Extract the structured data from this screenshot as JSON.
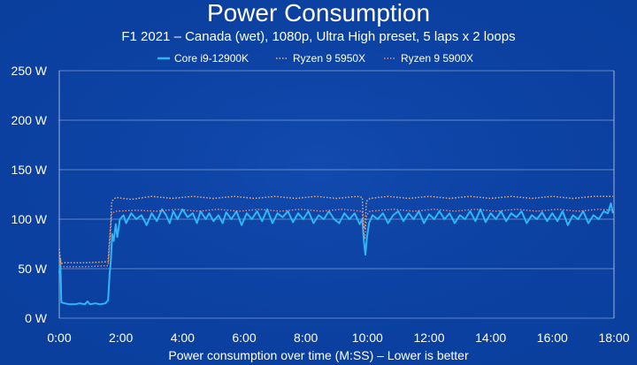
{
  "chart_data": {
    "type": "line",
    "title": "Power Consumption",
    "subtitle": "F1 2021 – Canada (wet), 1080p, Ultra High preset, 5 laps x 2 loops",
    "xlabel": "Power consumption over time (M:SS) – Lower is better",
    "ylabel": "",
    "x_unit": "seconds",
    "xlim": [
      0,
      1080
    ],
    "ylim": [
      0,
      250
    ],
    "x_ticks": [
      0,
      120,
      240,
      360,
      480,
      600,
      720,
      840,
      960,
      1080
    ],
    "x_tick_labels": [
      "0:00",
      "2:00",
      "4:00",
      "6:00",
      "8:00",
      "10:00",
      "12:00",
      "14:00",
      "16:00",
      "18:00"
    ],
    "y_ticks": [
      0,
      50,
      100,
      150,
      200,
      250
    ],
    "y_tick_labels": [
      "0 W",
      "50 W",
      "100 W",
      "150 W",
      "200 W",
      "250 W"
    ],
    "grid": true,
    "legend_position": "top-center",
    "series": [
      {
        "name": "Core i9-12900K",
        "style": "solid",
        "color": "#2db7f5",
        "points": [
          [
            0,
            45
          ],
          [
            2,
            60
          ],
          [
            4,
            16
          ],
          [
            10,
            15
          ],
          [
            20,
            14
          ],
          [
            30,
            14
          ],
          [
            40,
            15
          ],
          [
            50,
            14
          ],
          [
            55,
            17
          ],
          [
            60,
            14
          ],
          [
            70,
            15
          ],
          [
            80,
            14
          ],
          [
            90,
            15
          ],
          [
            95,
            18
          ],
          [
            98,
            45
          ],
          [
            100,
            55
          ],
          [
            103,
            85
          ],
          [
            106,
            78
          ],
          [
            110,
            95
          ],
          [
            113,
            82
          ],
          [
            118,
            100
          ],
          [
            125,
            104
          ],
          [
            130,
            96
          ],
          [
            140,
            106
          ],
          [
            150,
            100
          ],
          [
            160,
            104
          ],
          [
            170,
            94
          ],
          [
            180,
            106
          ],
          [
            190,
            98
          ],
          [
            200,
            110
          ],
          [
            208,
            104
          ],
          [
            215,
            96
          ],
          [
            222,
            108
          ],
          [
            230,
            100
          ],
          [
            240,
            110
          ],
          [
            250,
            102
          ],
          [
            260,
            106
          ],
          [
            268,
            96
          ],
          [
            275,
            108
          ],
          [
            285,
            100
          ],
          [
            292,
            106
          ],
          [
            300,
            98
          ],
          [
            310,
            104
          ],
          [
            318,
            96
          ],
          [
            325,
            107
          ],
          [
            335,
            100
          ],
          [
            345,
            108
          ],
          [
            355,
            94
          ],
          [
            365,
            106
          ],
          [
            375,
            100
          ],
          [
            385,
            108
          ],
          [
            395,
            98
          ],
          [
            405,
            110
          ],
          [
            415,
            96
          ],
          [
            425,
            106
          ],
          [
            435,
            102
          ],
          [
            445,
            108
          ],
          [
            455,
            97
          ],
          [
            465,
            106
          ],
          [
            475,
            100
          ],
          [
            485,
            108
          ],
          [
            495,
            96
          ],
          [
            505,
            104
          ],
          [
            515,
            100
          ],
          [
            525,
            108
          ],
          [
            535,
            100
          ],
          [
            545,
            96
          ],
          [
            555,
            106
          ],
          [
            565,
            100
          ],
          [
            575,
            106
          ],
          [
            585,
            95
          ],
          [
            590,
            100
          ],
          [
            593,
            78
          ],
          [
            596,
            64
          ],
          [
            599,
            82
          ],
          [
            603,
            96
          ],
          [
            610,
            104
          ],
          [
            620,
            100
          ],
          [
            630,
            106
          ],
          [
            640,
            96
          ],
          [
            650,
            104
          ],
          [
            660,
            108
          ],
          [
            670,
            98
          ],
          [
            680,
            106
          ],
          [
            690,
            100
          ],
          [
            700,
            108
          ],
          [
            710,
            96
          ],
          [
            720,
            105
          ],
          [
            730,
            100
          ],
          [
            740,
            108
          ],
          [
            750,
            100
          ],
          [
            760,
            106
          ],
          [
            770,
            96
          ],
          [
            780,
            104
          ],
          [
            790,
            100
          ],
          [
            800,
            108
          ],
          [
            810,
            98
          ],
          [
            820,
            110
          ],
          [
            830,
            97
          ],
          [
            840,
            106
          ],
          [
            850,
            100
          ],
          [
            860,
            108
          ],
          [
            870,
            98
          ],
          [
            880,
            106
          ],
          [
            890,
            102
          ],
          [
            900,
            108
          ],
          [
            910,
            96
          ],
          [
            920,
            104
          ],
          [
            930,
            100
          ],
          [
            940,
            107
          ],
          [
            950,
            98
          ],
          [
            960,
            106
          ],
          [
            970,
            98
          ],
          [
            980,
            108
          ],
          [
            990,
            94
          ],
          [
            1000,
            104
          ],
          [
            1010,
            100
          ],
          [
            1020,
            108
          ],
          [
            1030,
            96
          ],
          [
            1040,
            104
          ],
          [
            1050,
            100
          ],
          [
            1060,
            108
          ],
          [
            1068,
            106
          ],
          [
            1074,
            116
          ],
          [
            1078,
            106
          ]
        ]
      },
      {
        "name": "Ryzen 9 5950X",
        "style": "dotted",
        "color": "#f2b37b",
        "points": [
          [
            0,
            70
          ],
          [
            3,
            55
          ],
          [
            10,
            56
          ],
          [
            50,
            56
          ],
          [
            95,
            57
          ],
          [
            98,
            80
          ],
          [
            100,
            95
          ],
          [
            102,
            118
          ],
          [
            110,
            122
          ],
          [
            140,
            120
          ],
          [
            180,
            123
          ],
          [
            220,
            121
          ],
          [
            260,
            123
          ],
          [
            300,
            121
          ],
          [
            340,
            123
          ],
          [
            380,
            121
          ],
          [
            420,
            123
          ],
          [
            460,
            121
          ],
          [
            500,
            123
          ],
          [
            540,
            121
          ],
          [
            580,
            123
          ],
          [
            590,
            122
          ],
          [
            592,
            95
          ],
          [
            595,
            90
          ],
          [
            598,
            118
          ],
          [
            605,
            121
          ],
          [
            640,
            123
          ],
          [
            680,
            121
          ],
          [
            720,
            123
          ],
          [
            760,
            121
          ],
          [
            800,
            123
          ],
          [
            840,
            121
          ],
          [
            880,
            123
          ],
          [
            920,
            121
          ],
          [
            960,
            123
          ],
          [
            1000,
            121
          ],
          [
            1040,
            123
          ],
          [
            1078,
            123
          ]
        ]
      },
      {
        "name": "Ryzen 9 5900X",
        "style": "dotted",
        "color": "#e8867a",
        "points": [
          [
            0,
            65
          ],
          [
            3,
            52
          ],
          [
            10,
            52
          ],
          [
            50,
            52
          ],
          [
            95,
            53
          ],
          [
            98,
            75
          ],
          [
            100,
            90
          ],
          [
            102,
            106
          ],
          [
            110,
            108
          ],
          [
            150,
            109
          ],
          [
            190,
            108
          ],
          [
            230,
            110
          ],
          [
            270,
            108
          ],
          [
            310,
            110
          ],
          [
            350,
            108
          ],
          [
            390,
            110
          ],
          [
            430,
            108
          ],
          [
            470,
            110
          ],
          [
            510,
            108
          ],
          [
            550,
            110
          ],
          [
            590,
            108
          ],
          [
            592,
            88
          ],
          [
            595,
            80
          ],
          [
            598,
            104
          ],
          [
            605,
            108
          ],
          [
            650,
            110
          ],
          [
            690,
            108
          ],
          [
            730,
            110
          ],
          [
            770,
            108
          ],
          [
            810,
            110
          ],
          [
            850,
            108
          ],
          [
            890,
            110
          ],
          [
            930,
            108
          ],
          [
            970,
            110
          ],
          [
            1010,
            108
          ],
          [
            1050,
            110
          ],
          [
            1078,
            109
          ]
        ]
      }
    ]
  }
}
